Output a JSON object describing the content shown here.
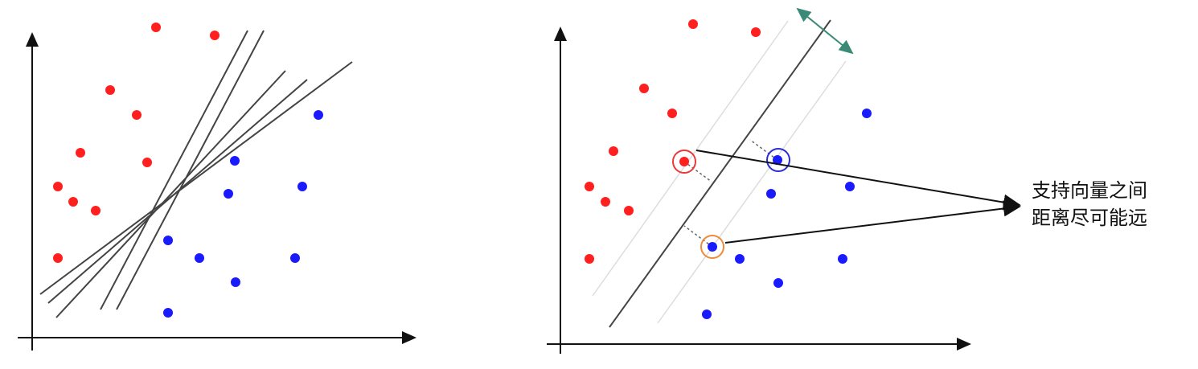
{
  "annotation": {
    "line1": "支持向量之间",
    "line2": "距离尽可能远"
  },
  "colors": {
    "class_a": "#ff1f1f",
    "class_b": "#1a1aff",
    "line": "#444444",
    "axis": "#111111",
    "margin_arrow": "#3b8a78",
    "sv_red_ring": "#e83a3a",
    "sv_blue_ring": "#2a2ad8",
    "sv_orange_ring": "#f08a3a"
  },
  "icons": {
    "axes": "axis-arrows",
    "support_vector_marker": "circle-ring",
    "margin_width": "double-arrow"
  }
}
